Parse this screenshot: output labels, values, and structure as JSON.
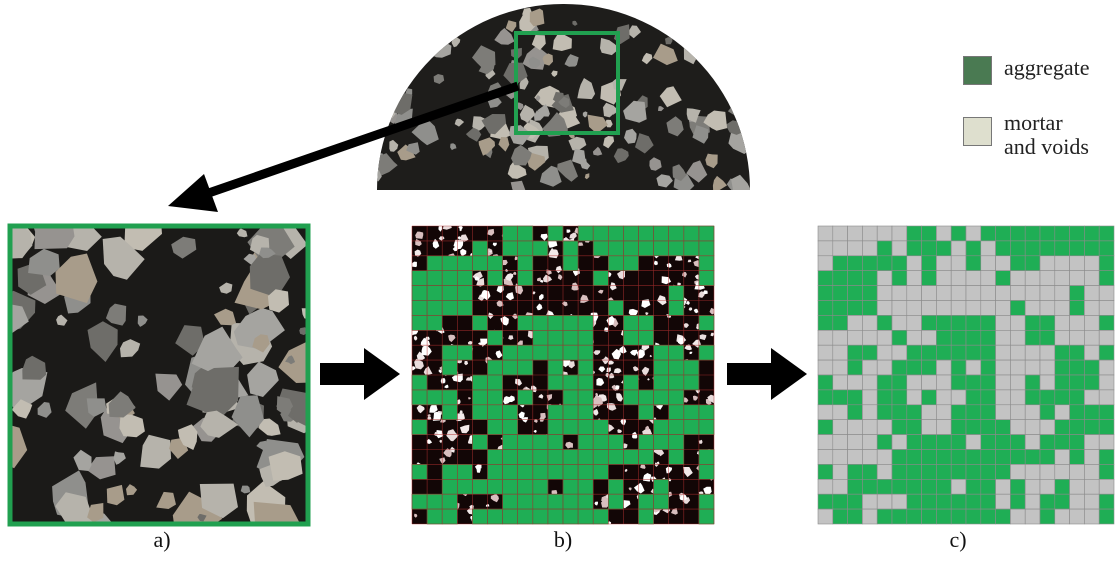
{
  "legend": {
    "items": [
      {
        "label": "aggregate",
        "color": "#4a7a52"
      },
      {
        "label_lines": [
          "mortar",
          "and voids"
        ],
        "color": "#dedfce"
      }
    ]
  },
  "panels": {
    "a": {
      "label": "a)"
    },
    "b": {
      "label": "b)"
    },
    "c": {
      "label": "c)"
    }
  },
  "colors": {
    "frame_green": "#21a050",
    "cell_green": "#1fae55",
    "cell_grey": "#c3c3c3",
    "asphalt_dark": "#1b1a18",
    "arrow": "#000000"
  },
  "grid": {
    "rows": 20,
    "cols": 20
  }
}
